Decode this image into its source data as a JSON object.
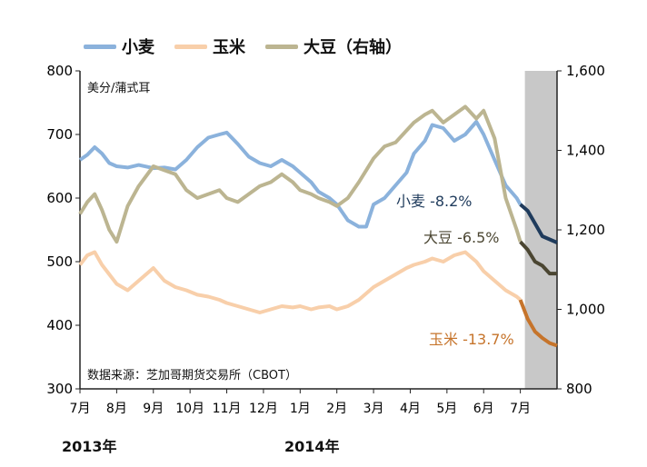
{
  "chart_data": {
    "type": "line",
    "legend_position": "top",
    "unit_label": "美分/蒲式耳",
    "source": "数据来源：芝加哥期货交易所（CBOT）",
    "x_labels": [
      "7月",
      "8月",
      "9月",
      "10月",
      "11月",
      "12月",
      "1月",
      "2月",
      "3月",
      "4月",
      "5月",
      "6月",
      "7月"
    ],
    "year_labels": [
      {
        "label": "2013年",
        "at_month": 0
      },
      {
        "label": "2014年",
        "at_month": 6
      }
    ],
    "y_left": {
      "min": 300,
      "max": 800,
      "ticks": [
        300,
        400,
        500,
        600,
        700,
        800
      ]
    },
    "y_right": {
      "min": 800,
      "max": 1600,
      "ticks": [
        "800",
        "1,000",
        "1,200",
        "1,400",
        "1,600"
      ],
      "tick_values": [
        800,
        1000,
        1200,
        1400,
        1600
      ]
    },
    "highlight_region": {
      "from_month": 12,
      "to_month": 13,
      "color": "#c8c8c8"
    },
    "series": [
      {
        "name": "小麦",
        "axis": "left",
        "color": "#8bb2dc",
        "highlight_color": "#1f3b5c",
        "change_label": "小麦 -8.2%",
        "label_color": "#1f3b5c",
        "x": [
          0,
          0.2,
          0.4,
          0.6,
          0.8,
          1.0,
          1.3,
          1.6,
          2.0,
          2.3,
          2.6,
          2.9,
          3.2,
          3.5,
          3.8,
          4.0,
          4.3,
          4.6,
          4.9,
          5.2,
          5.5,
          5.8,
          6.0,
          6.3,
          6.5,
          6.8,
          7.0,
          7.3,
          7.6,
          7.8,
          8.0,
          8.3,
          8.6,
          8.9,
          9.1,
          9.4,
          9.6,
          9.9,
          10.2,
          10.5,
          10.8,
          11.0,
          11.3,
          11.6,
          11.9,
          12.0,
          12.2,
          12.4,
          12.6,
          12.8,
          13.0
        ],
        "values": [
          660,
          668,
          680,
          670,
          655,
          650,
          648,
          652,
          647,
          648,
          645,
          660,
          680,
          695,
          700,
          703,
          685,
          665,
          655,
          650,
          660,
          650,
          640,
          625,
          610,
          600,
          590,
          565,
          555,
          555,
          590,
          600,
          620,
          640,
          670,
          690,
          715,
          710,
          690,
          700,
          720,
          700,
          660,
          620,
          600,
          590,
          580,
          560,
          540,
          535,
          530
        ]
      },
      {
        "name": "玉米",
        "axis": "left",
        "color": "#f8cfaa",
        "highlight_color": "#c6742b",
        "change_label": "玉米 -13.7%",
        "label_color": "#c6742b",
        "x": [
          0,
          0.2,
          0.4,
          0.6,
          0.8,
          1.0,
          1.3,
          1.6,
          2.0,
          2.3,
          2.6,
          2.9,
          3.2,
          3.5,
          3.8,
          4.0,
          4.3,
          4.6,
          4.9,
          5.2,
          5.5,
          5.8,
          6.0,
          6.3,
          6.5,
          6.8,
          7.0,
          7.3,
          7.6,
          7.8,
          8.0,
          8.3,
          8.6,
          8.9,
          9.1,
          9.4,
          9.6,
          9.9,
          10.2,
          10.5,
          10.8,
          11.0,
          11.3,
          11.6,
          11.9,
          12.0,
          12.2,
          12.4,
          12.6,
          12.8,
          13.0
        ],
        "values": [
          495,
          510,
          515,
          495,
          480,
          465,
          455,
          470,
          490,
          470,
          460,
          455,
          448,
          445,
          440,
          435,
          430,
          425,
          420,
          425,
          430,
          428,
          430,
          425,
          428,
          430,
          425,
          430,
          440,
          450,
          460,
          470,
          480,
          490,
          495,
          500,
          505,
          500,
          510,
          515,
          500,
          485,
          470,
          455,
          445,
          440,
          410,
          390,
          380,
          372,
          368
        ]
      },
      {
        "name": "大豆（右轴）",
        "axis": "right",
        "color": "#bcb591",
        "highlight_color": "#4b4632",
        "change_label": "大豆 -6.5%",
        "label_color": "#4b4632",
        "x": [
          0,
          0.2,
          0.4,
          0.6,
          0.8,
          1.0,
          1.3,
          1.6,
          2.0,
          2.3,
          2.6,
          2.9,
          3.2,
          3.5,
          3.8,
          4.0,
          4.3,
          4.6,
          4.9,
          5.2,
          5.5,
          5.8,
          6.0,
          6.3,
          6.5,
          6.8,
          7.0,
          7.3,
          7.6,
          7.8,
          8.0,
          8.3,
          8.6,
          8.9,
          9.1,
          9.4,
          9.6,
          9.9,
          10.2,
          10.5,
          10.8,
          11.0,
          11.3,
          11.6,
          11.9,
          12.0,
          12.2,
          12.4,
          12.6,
          12.8,
          13.0
        ],
        "values": [
          1240,
          1270,
          1290,
          1250,
          1200,
          1170,
          1260,
          1310,
          1360,
          1350,
          1340,
          1300,
          1280,
          1290,
          1300,
          1280,
          1270,
          1290,
          1310,
          1320,
          1340,
          1320,
          1300,
          1290,
          1280,
          1270,
          1260,
          1280,
          1320,
          1350,
          1380,
          1410,
          1420,
          1450,
          1470,
          1490,
          1500,
          1470,
          1490,
          1510,
          1480,
          1500,
          1430,
          1280,
          1200,
          1170,
          1150,
          1120,
          1110,
          1090,
          1090
        ]
      }
    ]
  }
}
